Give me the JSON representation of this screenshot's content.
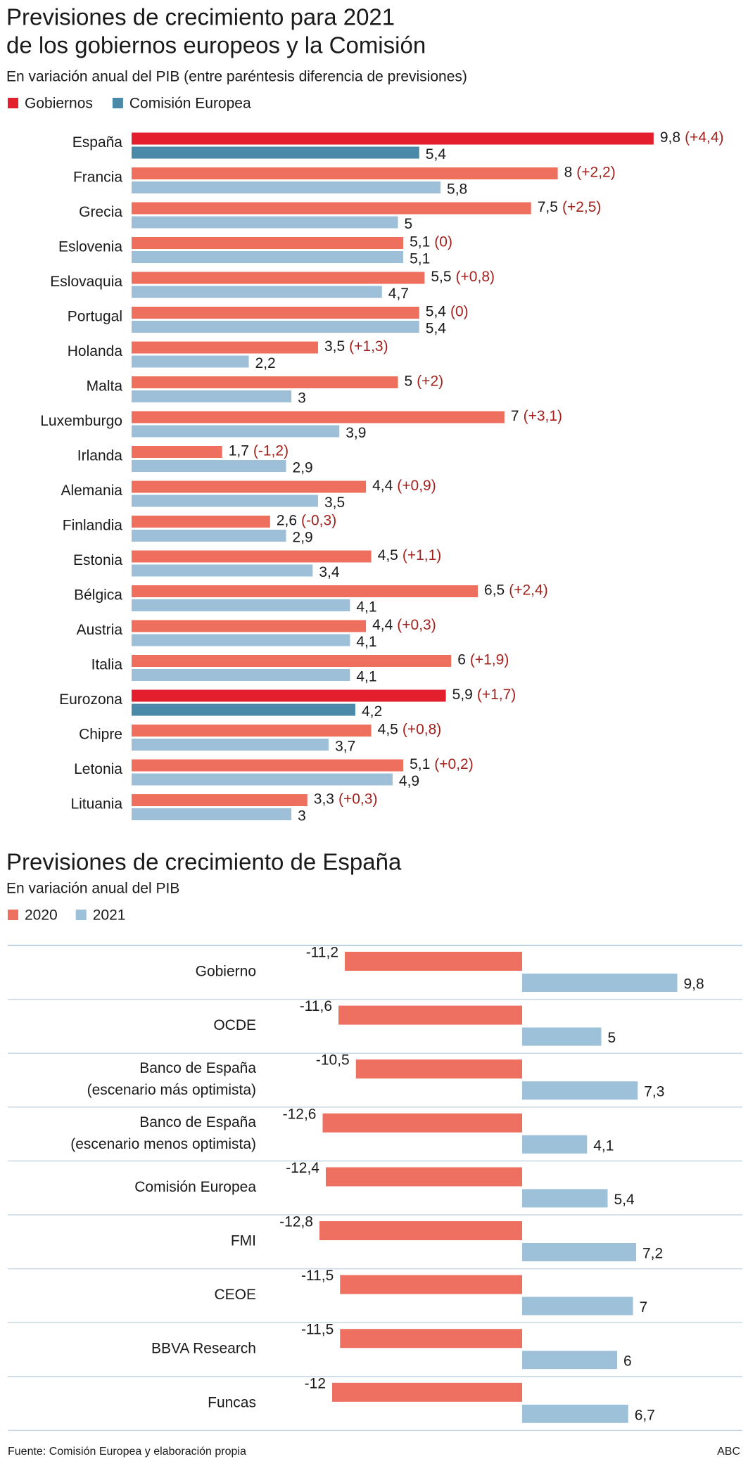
{
  "chart_data": [
    {
      "type": "bar",
      "orientation": "horizontal",
      "title": [
        "Previsiones de crecimiento para 2021",
        "de los gobiernos europeos y la Comisión"
      ],
      "subtitle": "En variación anual del PIB (entre paréntesis diferencia de previsiones)",
      "categories": [
        "España",
        "Francia",
        "Grecia",
        "Eslovenia",
        "Eslovaquia",
        "Portugal",
        "Holanda",
        "Malta",
        "Luxemburgo",
        "Irlanda",
        "Alemania",
        "Finlandia",
        "Estonia",
        "Bélgica",
        "Austria",
        "Italia",
        "Eurozona",
        "Chipre",
        "Letonia",
        "Lituania"
      ],
      "highlight": [
        "España",
        "Eurozona"
      ],
      "xlim": [
        0,
        10
      ],
      "legend": "top-left",
      "series": [
        {
          "name": "Gobiernos",
          "color": "#ee6f5e",
          "highlight_color": "#e31e2d",
          "values": [
            9.8,
            8,
            7.5,
            5.1,
            5.5,
            5.4,
            3.5,
            5,
            7,
            1.7,
            4.4,
            2.6,
            4.5,
            6.5,
            4.4,
            6,
            5.9,
            4.5,
            5.1,
            3.3
          ],
          "value_labels": [
            "9,8",
            "8",
            "7,5",
            "5,1",
            "5,5",
            "5,4",
            "3,5",
            "5",
            "7",
            "1,7",
            "4,4",
            "2,6",
            "4,5",
            "6,5",
            "4,4",
            "6",
            "5,9",
            "4,5",
            "5,1",
            "3,3"
          ],
          "annotations": [
            "(+4,4)",
            "(+2,2)",
            "(+2,5)",
            "(0)",
            "(+0,8)",
            "(0)",
            "(+1,3)",
            "(+2)",
            "(+3,1)",
            "(-1,2)",
            "(+0,9)",
            "(-0,3)",
            "(+1,1)",
            "(+2,4)",
            "(+0,3)",
            "(+1,9)",
            "(+1,7)",
            "(+0,8)",
            "(+0,2)",
            "(+0,3)"
          ],
          "annotation_color": "#a3211c"
        },
        {
          "name": "Comisión Europea",
          "color": "#9dc0d8",
          "highlight_color": "#4a8aa8",
          "values": [
            5.4,
            5.8,
            5,
            5.1,
            4.7,
            5.4,
            2.2,
            3,
            3.9,
            2.9,
            3.5,
            2.9,
            3.4,
            4.1,
            4.1,
            4.1,
            4.2,
            3.7,
            4.9,
            3
          ],
          "value_labels": [
            "5,4",
            "5,8",
            "5",
            "5,1",
            "4,7",
            "5,4",
            "2,2",
            "3",
            "3,9",
            "2,9",
            "3,5",
            "2,9",
            "3,4",
            "4,1",
            "4,1",
            "4,1",
            "4,2",
            "3,7",
            "4,9",
            "3"
          ]
        }
      ]
    },
    {
      "type": "bar",
      "orientation": "horizontal",
      "title": [
        "Previsiones de crecimiento de España"
      ],
      "subtitle": "En variación anual del PIB",
      "categories": [
        [
          "Gobierno"
        ],
        [
          "OCDE"
        ],
        [
          "Banco de España",
          "(escenario más optimista)"
        ],
        [
          "Banco de España",
          "(escenario menos optimista)"
        ],
        [
          "Comisión Europea"
        ],
        [
          "FMI"
        ],
        [
          "CEOE"
        ],
        [
          "BBVA Research"
        ],
        [
          "Funcas"
        ]
      ],
      "xlim": [
        -14,
        14
      ],
      "legend": "top-left",
      "series": [
        {
          "name": "2020",
          "color": "#ee7060",
          "values": [
            -11.2,
            -11.6,
            -10.5,
            -12.6,
            -12.4,
            -12.8,
            -11.5,
            -11.5,
            -12
          ],
          "value_labels": [
            "-11,2",
            "-11,6",
            "-10,5",
            "-12,6",
            "-12,4",
            "-12,8",
            "-11,5",
            "-11,5",
            "-12"
          ]
        },
        {
          "name": "2021",
          "color": "#9cc1d9",
          "values": [
            9.8,
            5,
            7.3,
            4.1,
            5.4,
            7.2,
            7,
            6,
            6.7
          ],
          "value_labels": [
            "9,8",
            "5",
            "7,3",
            "4,1",
            "5,4",
            "7,2",
            "7",
            "6",
            "6,7"
          ]
        }
      ]
    }
  ],
  "footer": {
    "source": "Fuente:  Comisión Europea y elaboración propia",
    "credit": "ABC"
  }
}
